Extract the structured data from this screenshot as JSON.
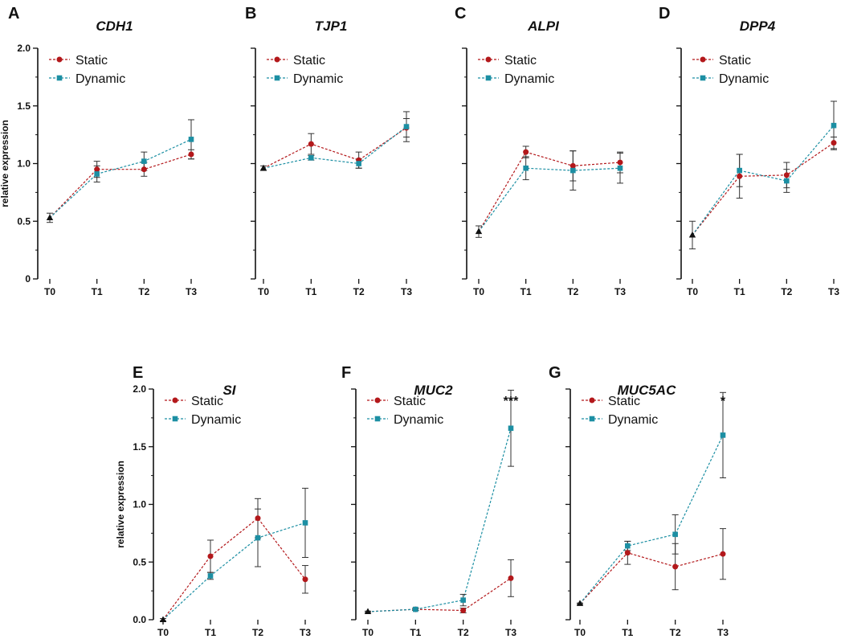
{
  "colors": {
    "static": "#B3181B",
    "dynamic": "#1C8FA3",
    "baseline": "#111111",
    "error": "#333333"
  },
  "legend": {
    "static": "Static",
    "dynamic": "Dynamic"
  },
  "chart_data": [
    {
      "panel": "A",
      "title": "CDH1",
      "type": "line",
      "ylabel": "relative expression",
      "categories": [
        "T0",
        "T1",
        "T2",
        "T3"
      ],
      "ylim": [
        0,
        2
      ],
      "yticks": [
        "0",
        "0.5",
        "1.0",
        "1.5",
        "2.0"
      ],
      "show_yticklabels": true,
      "baseline": {
        "value": 0.53,
        "err": 0.04
      },
      "series": [
        {
          "name": "Static",
          "values": [
            0.53,
            0.95,
            0.95,
            1.08
          ],
          "errors": [
            0.04,
            0.07,
            0.06,
            0.04
          ]
        },
        {
          "name": "Dynamic",
          "values": [
            0.53,
            0.91,
            1.02,
            1.21
          ],
          "errors": [
            0.04,
            0.07,
            0.08,
            0.17
          ]
        }
      ],
      "significance": ""
    },
    {
      "panel": "B",
      "title": "TJP1",
      "type": "line",
      "ylabel": "",
      "categories": [
        "T0",
        "T1",
        "T2",
        "T3"
      ],
      "ylim": [
        0,
        2
      ],
      "yticks": [
        "0",
        "0.5",
        "1.0",
        "1.5",
        "2.0"
      ],
      "show_yticklabels": false,
      "baseline": {
        "value": 0.96,
        "err": 0.02
      },
      "series": [
        {
          "name": "Static",
          "values": [
            0.96,
            1.17,
            1.03,
            1.31
          ],
          "errors": [
            0.02,
            0.09,
            0.07,
            0.08
          ]
        },
        {
          "name": "Dynamic",
          "values": [
            0.96,
            1.05,
            1.0,
            1.32
          ],
          "errors": [
            0.02,
            0.02,
            0.04,
            0.13
          ]
        }
      ],
      "significance": ""
    },
    {
      "panel": "C",
      "title": "ALPI",
      "type": "line",
      "ylabel": "",
      "categories": [
        "T0",
        "T1",
        "T2",
        "T3"
      ],
      "ylim": [
        0,
        2
      ],
      "yticks": [
        "0",
        "0.5",
        "1.0",
        "1.5",
        "2.0"
      ],
      "show_yticklabels": false,
      "baseline": {
        "value": 0.41,
        "err": 0.05
      },
      "series": [
        {
          "name": "Static",
          "values": [
            0.41,
            1.1,
            0.98,
            1.01
          ],
          "errors": [
            0.05,
            0.05,
            0.13,
            0.09
          ]
        },
        {
          "name": "Dynamic",
          "values": [
            0.41,
            0.96,
            0.94,
            0.96
          ],
          "errors": [
            0.05,
            0.1,
            0.17,
            0.13
          ]
        }
      ],
      "significance": ""
    },
    {
      "panel": "D",
      "title": "DPP4",
      "type": "line",
      "ylabel": "",
      "categories": [
        "T0",
        "T1",
        "T2",
        "T3"
      ],
      "ylim": [
        0,
        2
      ],
      "yticks": [
        "0",
        "0.5",
        "1.0",
        "1.5",
        "2.0"
      ],
      "show_yticklabels": false,
      "baseline": {
        "value": 0.38,
        "err": 0.12
      },
      "series": [
        {
          "name": "Static",
          "values": [
            0.38,
            0.89,
            0.9,
            1.18
          ],
          "errors": [
            0.12,
            0.19,
            0.11,
            0.05
          ]
        },
        {
          "name": "Dynamic",
          "values": [
            0.38,
            0.94,
            0.85,
            1.33
          ],
          "errors": [
            0.12,
            0.14,
            0.1,
            0.21
          ]
        }
      ],
      "significance": ""
    },
    {
      "panel": "E",
      "title": "SI",
      "type": "line",
      "ylabel": "relative expression",
      "categories": [
        "T0",
        "T1",
        "T2",
        "T3"
      ],
      "ylim": [
        0,
        2
      ],
      "yticks": [
        "0.0",
        "0.5",
        "1.0",
        "1.5",
        "2.0"
      ],
      "show_yticklabels": true,
      "baseline": {
        "value": 0.0,
        "err": 0.01
      },
      "series": [
        {
          "name": "Static",
          "values": [
            0.0,
            0.55,
            0.88,
            0.35
          ],
          "errors": [
            0.01,
            0.14,
            0.17,
            0.12
          ]
        },
        {
          "name": "Dynamic",
          "values": [
            0.0,
            0.38,
            0.71,
            0.84
          ],
          "errors": [
            0.01,
            0.03,
            0.25,
            0.3
          ]
        }
      ],
      "significance": ""
    },
    {
      "panel": "F",
      "title": "MUC2",
      "type": "line",
      "ylabel": "",
      "categories": [
        "T0",
        "T1",
        "T2",
        "T3"
      ],
      "ylim": [
        0,
        2
      ],
      "yticks": [
        "0.0",
        "0.5",
        "1.0",
        "1.5",
        "2.0"
      ],
      "show_yticklabels": false,
      "baseline": {
        "value": 0.07,
        "err": 0.005
      },
      "series": [
        {
          "name": "Static",
          "values": [
            0.07,
            0.09,
            0.08,
            0.36
          ],
          "errors": [
            0.005,
            0.01,
            0.02,
            0.16
          ]
        },
        {
          "name": "Dynamic",
          "values": [
            0.07,
            0.09,
            0.17,
            1.66
          ],
          "errors": [
            0.005,
            0.01,
            0.05,
            0.33
          ]
        }
      ],
      "significance": "***"
    },
    {
      "panel": "G",
      "title": "MUC5AC",
      "type": "line",
      "ylabel": "",
      "categories": [
        "T0",
        "T1",
        "T2",
        "T3"
      ],
      "ylim": [
        0,
        2
      ],
      "yticks": [
        "0.0",
        "0.5",
        "1.0",
        "1.5",
        "2.0"
      ],
      "show_yticklabels": false,
      "baseline": {
        "value": 0.14,
        "err": 0.005
      },
      "series": [
        {
          "name": "Static",
          "values": [
            0.14,
            0.58,
            0.46,
            0.57
          ],
          "errors": [
            0.005,
            0.1,
            0.2,
            0.22
          ]
        },
        {
          "name": "Dynamic",
          "values": [
            0.14,
            0.64,
            0.74,
            1.6
          ],
          "errors": [
            0.005,
            0.04,
            0.17,
            0.37
          ]
        }
      ],
      "significance": "*"
    }
  ]
}
